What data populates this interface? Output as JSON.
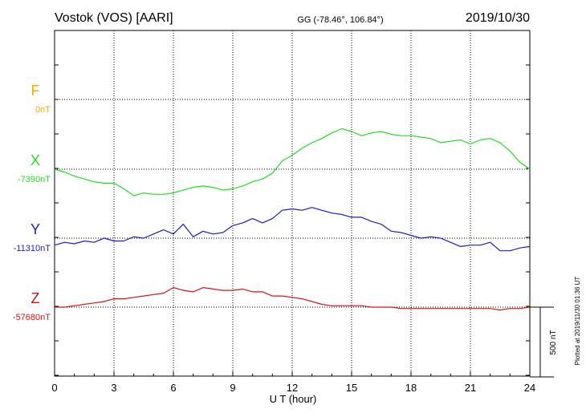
{
  "header": {
    "station": "Vostok (VOS)  [AARI]",
    "coords": "GG (-78.46°, 106.84°)",
    "date": "2019/10/30"
  },
  "side_note": "Plotted at 2019/11/30 01:36 UT",
  "scale_bar_label": "500 nT",
  "chart_data": {
    "type": "line",
    "title": "Vostok (VOS)  [AARI]",
    "xlabel": "U T (hour)",
    "ylabel": "",
    "xlim": [
      0,
      24
    ],
    "x_ticks": [
      "0",
      "3",
      "6",
      "9",
      "12",
      "15",
      "18",
      "21",
      "24"
    ],
    "grid": true,
    "scale_bar_nT": 500,
    "series": [
      {
        "name": "F",
        "baseline_label": "0nT",
        "color": "#ffa500",
        "x": [],
        "values": []
      },
      {
        "name": "X",
        "baseline_label": "-7390nT",
        "color": "#22dd22",
        "x": [
          0,
          0.5,
          1,
          1.5,
          2,
          2.5,
          3,
          3.5,
          4,
          4.5,
          5,
          5.5,
          6,
          6.5,
          7,
          7.5,
          8,
          8.5,
          9,
          9.5,
          10,
          10.5,
          11,
          11.5,
          12,
          12.5,
          13,
          13.5,
          14,
          14.5,
          15,
          15.5,
          16,
          16.5,
          17,
          17.5,
          18,
          18.5,
          19,
          19.5,
          20,
          20.5,
          21,
          21.5,
          22,
          22.5,
          23,
          23.5,
          24
        ],
        "values": [
          -7390,
          -7410,
          -7440,
          -7460,
          -7480,
          -7490,
          -7490,
          -7530,
          -7580,
          -7560,
          -7570,
          -7570,
          -7560,
          -7540,
          -7520,
          -7510,
          -7520,
          -7540,
          -7530,
          -7510,
          -7480,
          -7460,
          -7420,
          -7330,
          -7290,
          -7240,
          -7200,
          -7170,
          -7130,
          -7100,
          -7120,
          -7150,
          -7130,
          -7120,
          -7140,
          -7150,
          -7150,
          -7160,
          -7170,
          -7200,
          -7190,
          -7180,
          -7210,
          -7180,
          -7170,
          -7200,
          -7260,
          -7340,
          -7390
        ]
      },
      {
        "name": "Y",
        "baseline_label": "-11310nT",
        "color": "#1a1acc",
        "x": [
          0,
          0.5,
          1,
          1.5,
          2,
          2.5,
          3,
          3.5,
          4,
          4.5,
          5,
          5.5,
          6,
          6.5,
          7,
          7.5,
          8,
          8.5,
          9,
          9.5,
          10,
          10.5,
          11,
          11.5,
          12,
          12.5,
          13,
          13.5,
          14,
          14.5,
          15,
          15.5,
          16,
          16.5,
          17,
          17.5,
          18,
          18.5,
          19,
          19.5,
          20,
          20.5,
          21,
          21.5,
          22,
          22.5,
          23,
          23.5,
          24
        ],
        "values": [
          -11360,
          -11340,
          -11350,
          -11330,
          -11340,
          -11310,
          -11330,
          -11330,
          -11300,
          -11310,
          -11280,
          -11250,
          -11280,
          -11210,
          -11300,
          -11260,
          -11280,
          -11270,
          -11220,
          -11200,
          -11170,
          -11200,
          -11170,
          -11110,
          -11100,
          -11110,
          -11090,
          -11110,
          -11130,
          -11140,
          -11160,
          -11160,
          -11190,
          -11210,
          -11260,
          -11270,
          -11290,
          -11310,
          -11300,
          -11310,
          -11340,
          -11370,
          -11360,
          -11360,
          -11340,
          -11400,
          -11400,
          -11380,
          -11370
        ]
      },
      {
        "name": "Z",
        "baseline_label": "-57680nT",
        "color": "#dd1111",
        "x": [
          0,
          0.5,
          1,
          1.5,
          2,
          2.5,
          3,
          3.5,
          4,
          4.5,
          5,
          5.5,
          6,
          6.5,
          7,
          7.5,
          8,
          8.5,
          9,
          9.5,
          10,
          10.5,
          11,
          11.5,
          12,
          12.5,
          13,
          13.5,
          14,
          14.5,
          15,
          15.5,
          16,
          16.5,
          17,
          17.5,
          18,
          18.5,
          19,
          19.5,
          20,
          20.5,
          21,
          21.5,
          22,
          22.5,
          23,
          23.5,
          24
        ],
        "values": [
          -57680,
          -57680,
          -57670,
          -57660,
          -57650,
          -57640,
          -57620,
          -57620,
          -57610,
          -57600,
          -57590,
          -57580,
          -57540,
          -57560,
          -57570,
          -57540,
          -57550,
          -57560,
          -57560,
          -57550,
          -57570,
          -57570,
          -57600,
          -57600,
          -57610,
          -57620,
          -57640,
          -57660,
          -57670,
          -57670,
          -57670,
          -57670,
          -57680,
          -57680,
          -57680,
          -57690,
          -57690,
          -57690,
          -57690,
          -57690,
          -57690,
          -57690,
          -57690,
          -57690,
          -57690,
          -57700,
          -57690,
          -57690,
          -57680
        ]
      }
    ]
  }
}
